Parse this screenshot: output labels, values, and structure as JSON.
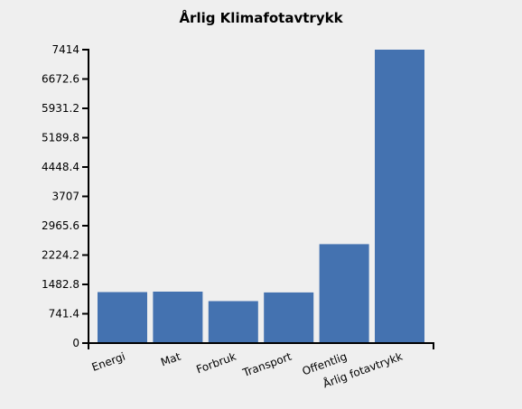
{
  "chart_data": {
    "type": "bar",
    "title": "Årlig Klimafotavtrykk",
    "xlabel": "",
    "ylabel": "",
    "categories": [
      "Energi",
      "Mat",
      "Forbruk",
      "Transport",
      "Offentlig",
      "Årlig fotavtrykk"
    ],
    "values": [
      1290,
      1300,
      1060,
      1280,
      2500,
      7414
    ],
    "y_ticks": [
      "0",
      "741.4",
      "1482.8",
      "2224.2",
      "2965.6",
      "3707",
      "4448.4",
      "5189.8",
      "5931.2",
      "6672.6",
      "7414"
    ],
    "ylim": [
      0,
      7414
    ],
    "grid": false,
    "legend": "none",
    "bar_color": "#4472b0"
  }
}
